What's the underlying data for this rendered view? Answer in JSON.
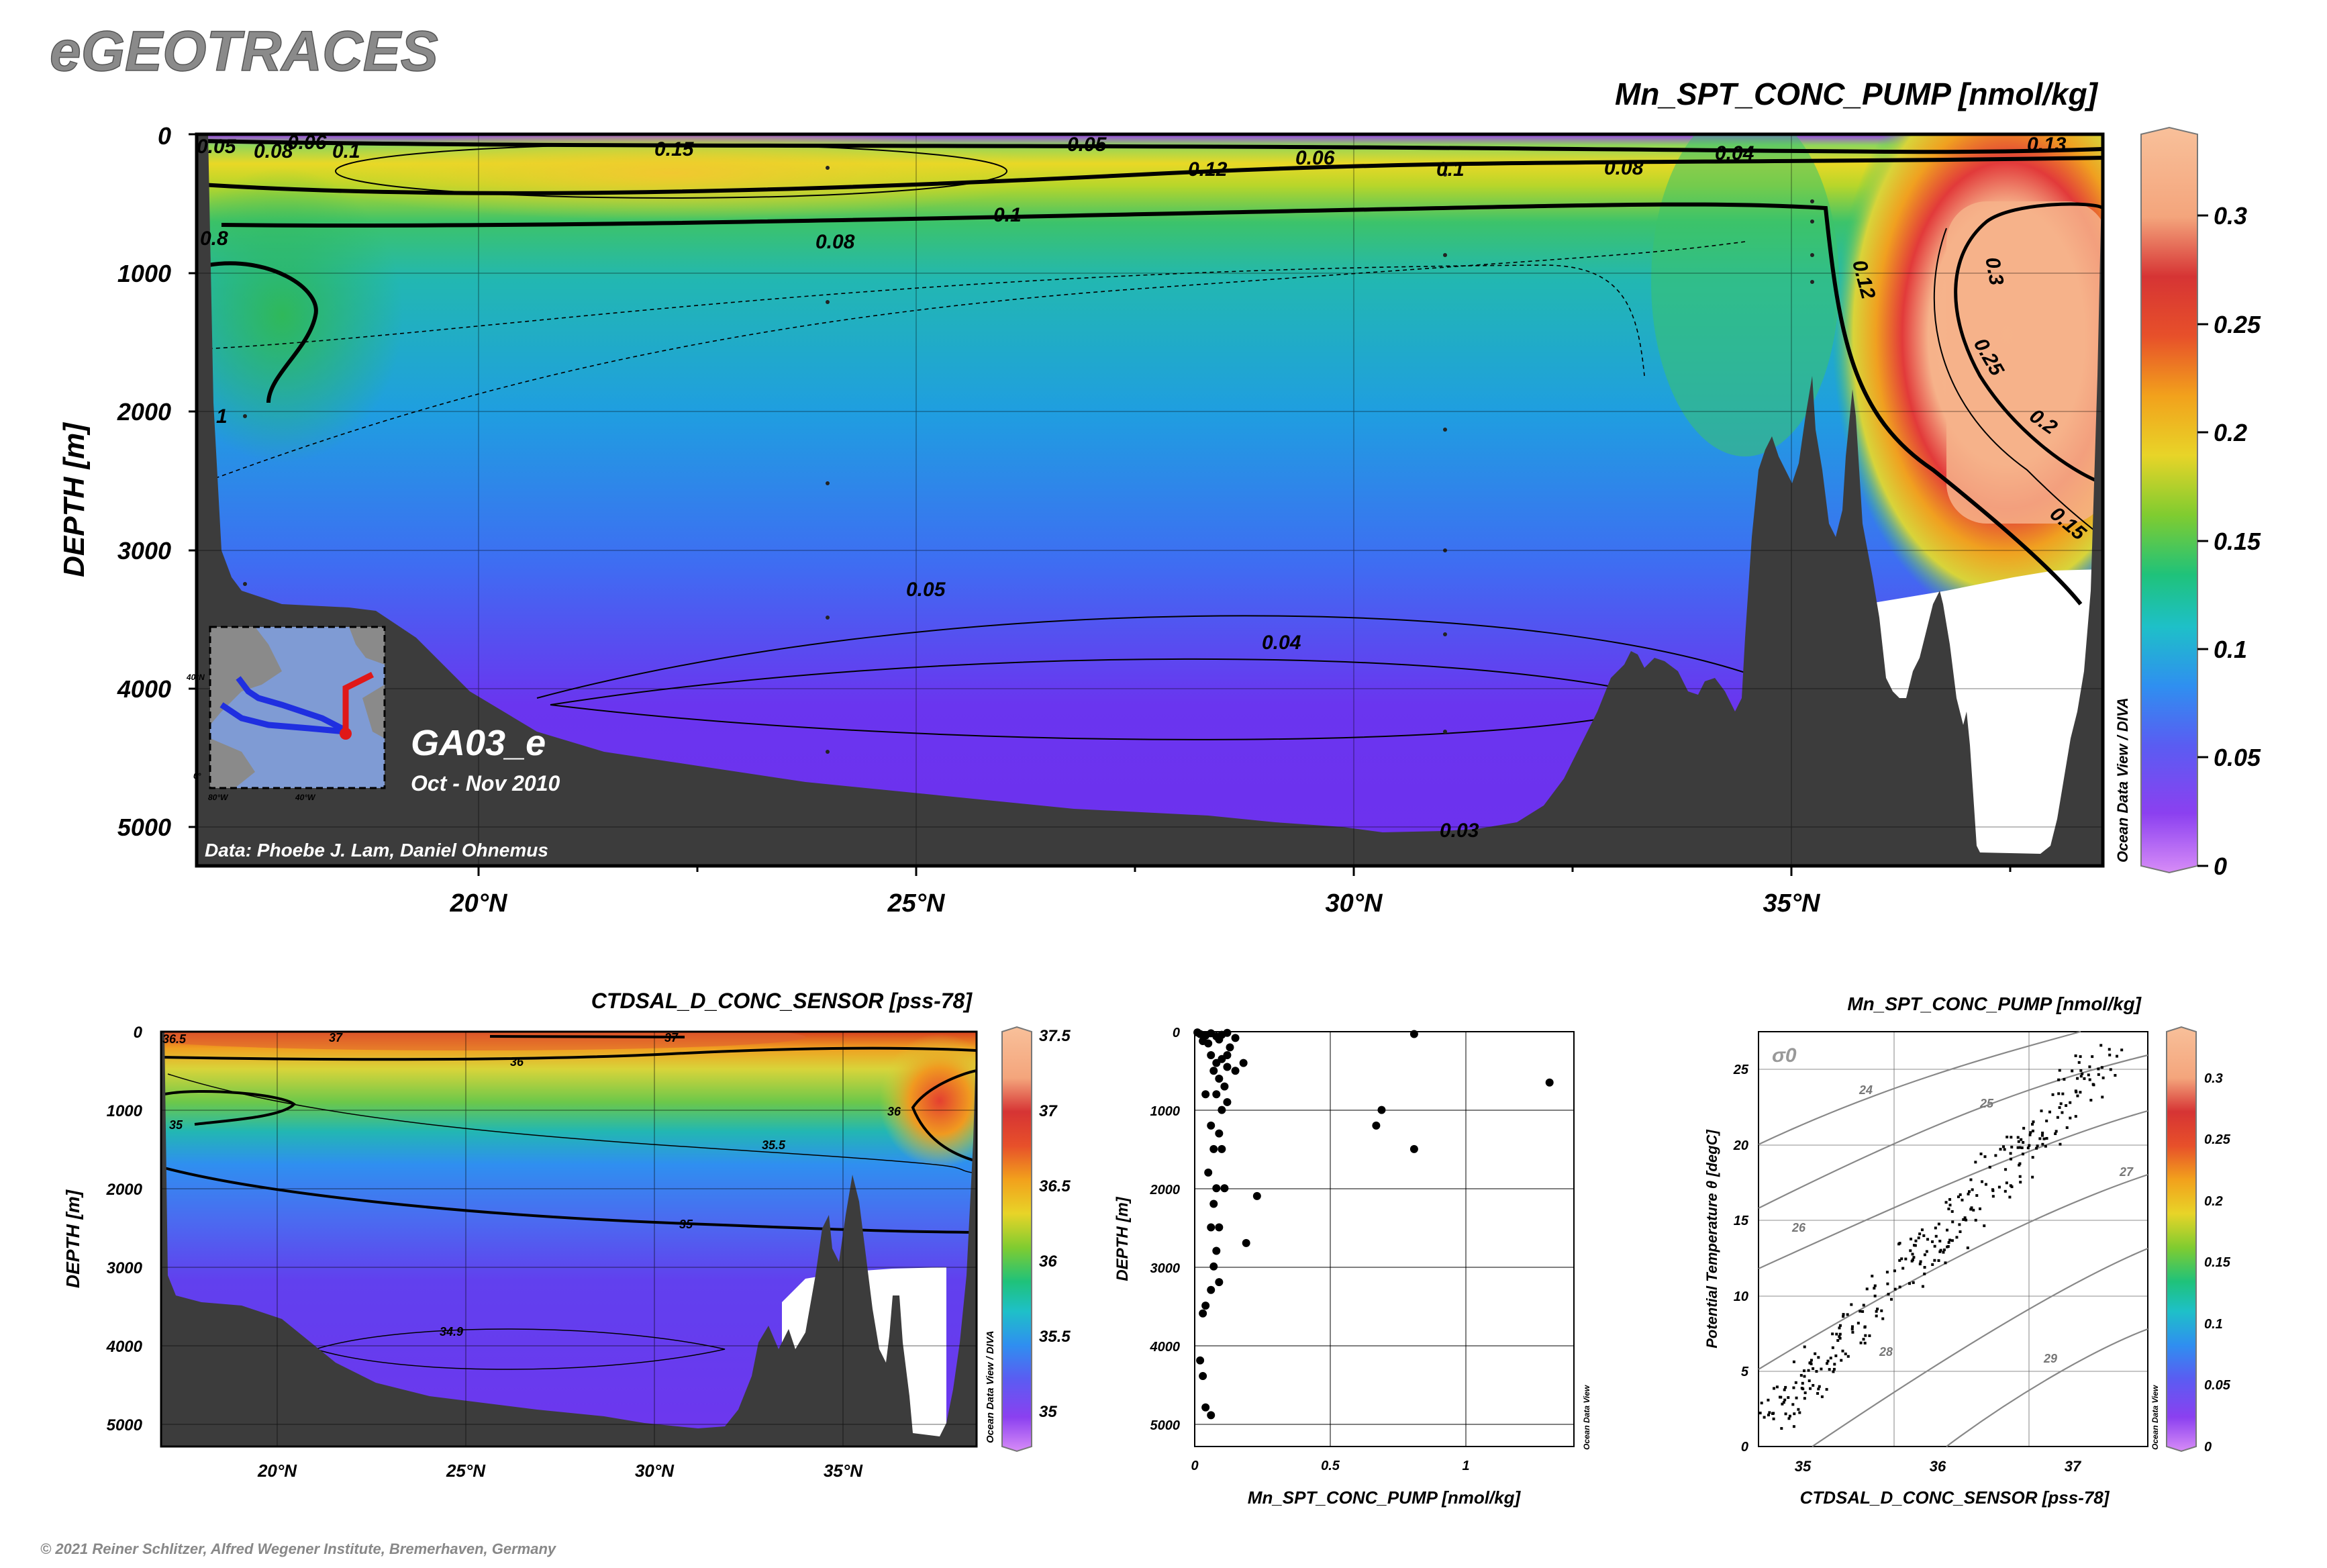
{
  "app_title": "eGEOTRACES",
  "footer": "© 2021 Reiner Schlitzer, Alfred Wegener Institute, Bremerhaven, Germany",
  "main_section": {
    "title": "Mn_SPT_CONC_PUMP [nmol/kg]",
    "ylabel": "DEPTH [m]",
    "y_ticks": [
      "0",
      "1000",
      "2000",
      "3000",
      "4000",
      "5000"
    ],
    "x_ticks": [
      "20°N",
      "25°N",
      "30°N",
      "35°N"
    ],
    "cruise": "GA03_e",
    "date": "Oct - Nov 2010",
    "credit": "Data: Phoebe J. Lam, Daniel Ohnemus",
    "watermark": "Ocean Data View / DIVA",
    "colorbar_ticks": [
      "0",
      "0.05",
      "0.1",
      "0.15",
      "0.2",
      "0.25",
      "0.3"
    ],
    "contour_labels": [
      "0.05",
      "0.08",
      "0.06",
      "0.1",
      "0.15",
      "0.05",
      "0.06",
      "0.12",
      "0.1",
      "0.08",
      "0.04",
      "0.13",
      "0.8",
      "0.1",
      "0.08",
      "0.12",
      "0.3",
      "0.25",
      "0.2",
      "0.15",
      "0.05",
      "0.04",
      "0.03",
      "1"
    ],
    "inset_labels": [
      "40°N",
      "80°W",
      "40°W",
      "0°"
    ]
  },
  "sal_section": {
    "title": "CTDSAL_D_CONC_SENSOR [pss-78]",
    "ylabel": "DEPTH [m]",
    "y_ticks": [
      "0",
      "1000",
      "2000",
      "3000",
      "4000",
      "5000"
    ],
    "x_ticks": [
      "20°N",
      "25°N",
      "30°N",
      "35°N"
    ],
    "watermark": "Ocean Data View / DIVA",
    "colorbar_ticks": [
      "35",
      "35.5",
      "36",
      "36.5",
      "37",
      "37.5"
    ],
    "contour_labels": [
      "36.5",
      "37",
      "37",
      "36",
      "35",
      "36",
      "35.5",
      "35",
      "34.9"
    ]
  },
  "profile": {
    "xlabel": "Mn_SPT_CONC_PUMP [nmol/kg]",
    "ylabel": "DEPTH [m]",
    "x_ticks": [
      "0",
      "0.5",
      "1"
    ],
    "y_ticks": [
      "0",
      "1000",
      "2000",
      "3000",
      "4000",
      "5000"
    ],
    "watermark": "Ocean Data View"
  },
  "ts_plot": {
    "title": "Mn_SPT_CONC_PUMP [nmol/kg]",
    "xlabel": "CTDSAL_D_CONC_SENSOR [pss-78]",
    "ylabel": "Potential Temperature θ [degC]",
    "x_ticks": [
      "35",
      "36",
      "37"
    ],
    "y_ticks": [
      "0",
      "5",
      "10",
      "15",
      "20",
      "25"
    ],
    "sigma_label": "σ0",
    "isopycnal_labels": [
      "24",
      "25",
      "26",
      "27",
      "28",
      "29"
    ],
    "watermark": "Ocean Data View",
    "colorbar_ticks": [
      "0",
      "0.05",
      "0.1",
      "0.15",
      "0.2",
      "0.25",
      "0.3"
    ]
  },
  "chart_data": [
    {
      "type": "heatmap",
      "title": "Mn_SPT_CONC_PUMP [nmol/kg]",
      "xlabel": "",
      "ylabel": "DEPTH [m]",
      "xlim": [
        16.8,
        38.5
      ],
      "ylim": [
        5300,
        0
      ],
      "x_ticks": [
        20,
        25,
        30,
        35
      ],
      "y_ticks": [
        0,
        1000,
        2000,
        3000,
        4000,
        5000
      ],
      "colorbar": {
        "min": 0,
        "max": 0.33,
        "ticks": [
          0,
          0.05,
          0.1,
          0.15,
          0.2,
          0.25,
          0.3
        ]
      }
    },
    {
      "type": "heatmap",
      "title": "CTDSAL_D_CONC_SENSOR [pss-78]",
      "xlabel": "",
      "ylabel": "DEPTH [m]",
      "xlim": [
        16.8,
        38.5
      ],
      "ylim": [
        5300,
        0
      ],
      "x_ticks": [
        20,
        25,
        30,
        35
      ],
      "y_ticks": [
        0,
        1000,
        2000,
        3000,
        4000,
        5000
      ],
      "colorbar": {
        "min": 34.8,
        "max": 37.5,
        "ticks": [
          35,
          35.5,
          36,
          36.5,
          37,
          37.5
        ]
      }
    },
    {
      "type": "scatter",
      "title": "",
      "xlabel": "Mn_SPT_CONC_PUMP [nmol/kg]",
      "ylabel": "DEPTH [m]",
      "xlim": [
        0,
        1.4
      ],
      "ylim": [
        5300,
        0
      ],
      "points": [
        [
          0.01,
          10
        ],
        [
          0.02,
          30
        ],
        [
          0.04,
          50
        ],
        [
          0.06,
          20
        ],
        [
          0.08,
          60
        ],
        [
          0.1,
          40
        ],
        [
          0.12,
          15
        ],
        [
          0.15,
          80
        ],
        [
          0.03,
          120
        ],
        [
          0.05,
          150
        ],
        [
          0.09,
          100
        ],
        [
          0.13,
          200
        ],
        [
          0.06,
          300
        ],
        [
          0.1,
          350
        ],
        [
          0.08,
          400
        ],
        [
          0.12,
          450
        ],
        [
          0.07,
          500
        ],
        [
          0.09,
          600
        ],
        [
          0.11,
          700
        ],
        [
          0.08,
          800
        ],
        [
          0.12,
          900
        ],
        [
          0.1,
          1000
        ],
        [
          0.06,
          1200
        ],
        [
          0.09,
          1300
        ],
        [
          0.07,
          1500
        ],
        [
          0.1,
          1500
        ],
        [
          0.11,
          2000
        ],
        [
          0.07,
          2200
        ],
        [
          0.09,
          2500
        ],
        [
          0.06,
          2500
        ],
        [
          0.08,
          2800
        ],
        [
          0.07,
          3000
        ],
        [
          0.09,
          3200
        ],
        [
          0.06,
          3300
        ],
        [
          0.04,
          3500
        ],
        [
          0.03,
          3600
        ],
        [
          0.02,
          4200
        ],
        [
          0.03,
          4400
        ],
        [
          0.04,
          4800
        ],
        [
          0.06,
          4900
        ],
        [
          0.15,
          500
        ],
        [
          0.18,
          400
        ],
        [
          0.23,
          2100
        ],
        [
          0.19,
          2700
        ],
        [
          0.67,
          1200
        ],
        [
          0.69,
          1000
        ],
        [
          0.81,
          1500
        ],
        [
          0.81,
          30
        ],
        [
          1.31,
          650
        ],
        [
          0.05,
          1800
        ],
        [
          0.08,
          2000
        ],
        [
          0.12,
          300
        ],
        [
          0.04,
          800
        ]
      ]
    },
    {
      "type": "scatter",
      "title": "Mn_SPT_CONC_PUMP [nmol/kg]",
      "xlabel": "CTDSAL_D_CONC_SENSOR [pss-78]",
      "ylabel": "Potential Temperature θ [degC]",
      "xlim": [
        34.8,
        37.5
      ],
      "ylim": [
        0,
        27.5
      ],
      "isopycnals": [
        24,
        25,
        26,
        27,
        28,
        29
      ]
    }
  ],
  "colors": {
    "bathymetry": "#3a3a3a",
    "ts_grid": "#888888"
  }
}
